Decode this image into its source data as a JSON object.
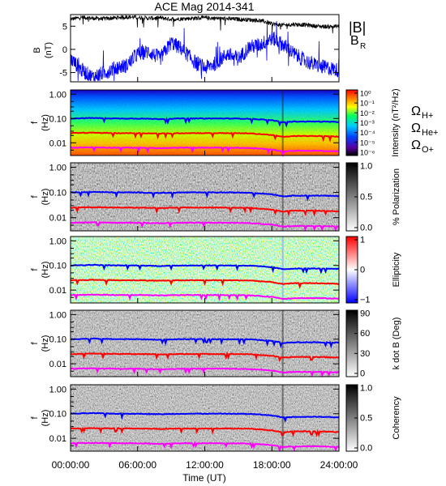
{
  "title": "ACE Mag 2014-341",
  "colors": {
    "btotal": "#000000",
    "br": "#0000ff",
    "h_plus": "#0000ff",
    "he_plus": "#ff0000",
    "o_plus": "#ff00ff"
  },
  "time_axis": {
    "label": "Time (UT)",
    "ticks": [
      "00:00:00",
      "06:00:00",
      "12:00:00",
      "18:00:00",
      "24:00:00"
    ]
  },
  "legend": {
    "btotal": "|B|",
    "br": "B",
    "br_sub": "R",
    "omega": "Ω",
    "h_plus_sub": "H+",
    "he_plus_sub": "He+",
    "o_plus_sub": "O+"
  },
  "chart_data": [
    {
      "type": "line",
      "panel": "magnetic-field",
      "ylabel": "B",
      "yunit": "(nT)",
      "ylim": [
        -7,
        7.5
      ],
      "yticks": [
        "5",
        "0",
        "-5"
      ],
      "x_hours": [
        0,
        1,
        2,
        3,
        4,
        5,
        6,
        7,
        8,
        9,
        10,
        11,
        12,
        13,
        14,
        15,
        16,
        17,
        18,
        19,
        20,
        21,
        22,
        23,
        24
      ],
      "series": [
        {
          "name": "|B|",
          "values": [
            6.5,
            6.9,
            6.7,
            6.6,
            6.8,
            7.0,
            6.9,
            6.7,
            6.8,
            6.5,
            6.6,
            6.7,
            6.8,
            6.7,
            6.6,
            6.5,
            6.4,
            6.2,
            5.5,
            5.2,
            5.4,
            5.3,
            5.0,
            4.9,
            5.0
          ]
        },
        {
          "name": "B_R",
          "values": [
            -2.0,
            -4.5,
            -6.0,
            -5.0,
            -4.0,
            -3.5,
            -1.0,
            -0.5,
            -2.0,
            1.5,
            0.0,
            -2.5,
            -4.0,
            -3.0,
            -1.0,
            -2.0,
            0.5,
            1.0,
            2.5,
            1.0,
            -1.0,
            -2.5,
            -3.5,
            -4.0,
            -4.5
          ]
        }
      ]
    },
    {
      "type": "heatmap",
      "panel": "intensity",
      "ylabel": "f",
      "yunit": "(Hz)",
      "yticks": [
        "1.00",
        "0.10",
        "0.01"
      ],
      "colorbar_label": "Intensity (nT²/Hz)",
      "colorbar_ticks": [
        "10⁰",
        "10⁻¹",
        "10⁻²",
        "10⁻³",
        "10⁻⁴",
        "10⁻⁵",
        "10⁻⁶"
      ]
    },
    {
      "type": "heatmap",
      "panel": "polarization",
      "ylabel": "f",
      "yunit": "(Hz)",
      "yticks": [
        "1.00",
        "0.10",
        "0.01"
      ],
      "colorbar_label": "% Polarization",
      "colorbar_ticks": [
        "1.0",
        "0.5",
        "0.0"
      ]
    },
    {
      "type": "heatmap",
      "panel": "ellipticity",
      "ylabel": "f",
      "yunit": "(Hz)",
      "yticks": [
        "1.00",
        "0.10",
        "0.01"
      ],
      "colorbar_label": "Ellipticity",
      "colorbar_ticks": [
        "1",
        "0",
        "−1"
      ]
    },
    {
      "type": "heatmap",
      "panel": "k-dot-b",
      "ylabel": "f",
      "yunit": "(Hz)",
      "yticks": [
        "1.00",
        "0.10",
        "0.01"
      ],
      "colorbar_label": "k dot B (Deg)",
      "colorbar_ticks": [
        "90",
        "60",
        "30",
        "0"
      ]
    },
    {
      "type": "heatmap",
      "panel": "coherency",
      "ylabel": "f",
      "yunit": "(Hz)",
      "yticks": [
        "1.00",
        "0.10",
        "0.01"
      ],
      "colorbar_label": "Coherency",
      "colorbar_ticks": [
        "1.0",
        "0.5",
        "0.0"
      ]
    }
  ],
  "gyrofrequencies": {
    "x_hours": [
      0,
      2,
      4,
      6,
      8,
      10,
      12,
      14,
      16,
      18,
      19,
      20,
      22,
      24
    ],
    "h_plus_hz": [
      0.1,
      0.105,
      0.1,
      0.1,
      0.095,
      0.1,
      0.1,
      0.1,
      0.098,
      0.085,
      0.07,
      0.075,
      0.075,
      0.072
    ],
    "he_plus_hz": [
      0.025,
      0.026,
      0.025,
      0.025,
      0.024,
      0.025,
      0.025,
      0.025,
      0.0245,
      0.021,
      0.0175,
      0.019,
      0.019,
      0.018
    ],
    "o_plus_hz": [
      0.0063,
      0.0065,
      0.0063,
      0.0063,
      0.006,
      0.0063,
      0.0063,
      0.0063,
      0.0061,
      0.0053,
      0.0044,
      0.0047,
      0.0047,
      0.0045
    ]
  }
}
